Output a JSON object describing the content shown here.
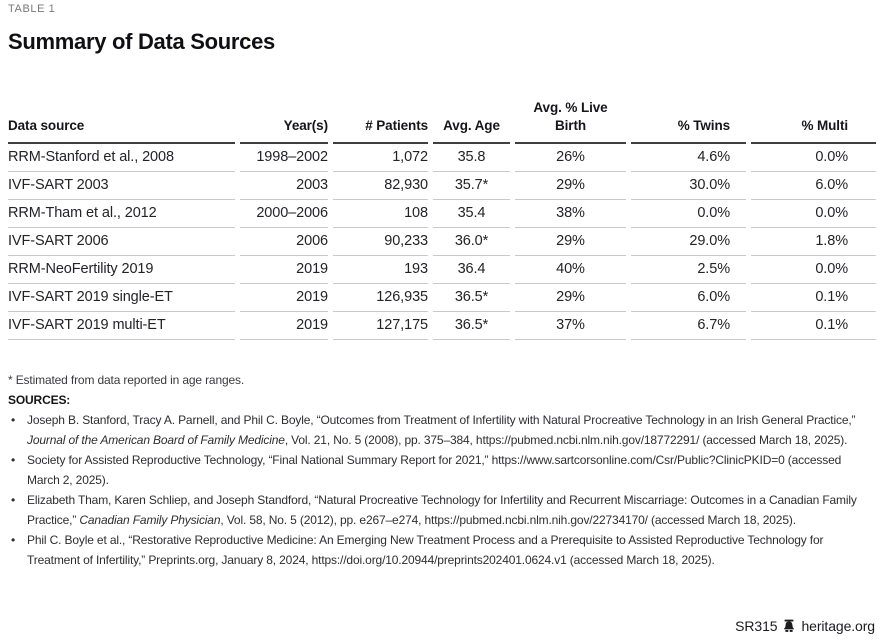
{
  "page": {
    "kicker": "TABLE 1",
    "title": "Summary of Data Sources"
  },
  "table": {
    "columns": [
      {
        "key": "data-source",
        "label": "Data source",
        "align": "left"
      },
      {
        "key": "years",
        "label": "Year(s)",
        "align": "right"
      },
      {
        "key": "patients",
        "label": "# Patients",
        "align": "right"
      },
      {
        "key": "avg-age",
        "label": "Avg. Age",
        "align": "center"
      },
      {
        "key": "avg-live-birth",
        "label": "Avg. % Live\nBirth",
        "align": "center"
      },
      {
        "key": "pct-twins",
        "label": "% Twins",
        "align": "right"
      },
      {
        "key": "pct-multi",
        "label": "% Multi",
        "align": "right"
      }
    ],
    "rows": [
      [
        "RRM-Stanford et al., 2008",
        "1998–2002",
        "1,072",
        "35.8",
        "26%",
        "4.6%",
        "0.0%"
      ],
      [
        "IVF-SART 2003",
        "2003",
        "82,930",
        "35.7*",
        "29%",
        "30.0%",
        "6.0%"
      ],
      [
        "RRM-Tham et al., 2012",
        "2000–2006",
        "108",
        "35.4",
        "38%",
        "0.0%",
        "0.0%"
      ],
      [
        "IVF-SART 2006",
        "2006",
        "90,233",
        "36.0*",
        "29%",
        "29.0%",
        "1.8%"
      ],
      [
        "RRM-NeoFertility 2019",
        "2019",
        "193",
        "36.4",
        "40%",
        "2.5%",
        "0.0%"
      ],
      [
        "IVF-SART 2019 single-ET",
        "2019",
        "126,935",
        "36.5*",
        "29%",
        "6.0%",
        "0.1%"
      ],
      [
        "IVF-SART 2019 multi-ET",
        "2019",
        "127,175",
        "36.5*",
        "37%",
        "6.7%",
        "0.1%"
      ]
    ]
  },
  "notes": {
    "footnote": "* Estimated from data reported in age ranges.",
    "sources_label": "SOURCES:",
    "bullet_char": "•",
    "sources": [
      [
        {
          "t": "Joseph B. Stanford, Tracy A. Parnell, and Phil C. Boyle, “Outcomes from Treatment of Infertility with Natural Procreative Technology in an Irish General Practice,” "
        },
        {
          "t": "Journal of the American Board of Family Medicine",
          "i": true
        },
        {
          "t": ", Vol. 21, No. 5 (2008), pp. 375–384, https://pubmed.ncbi.nlm.nih.gov/18772291/ (accessed March 18, 2025)."
        }
      ],
      [
        {
          "t": "Society for Assisted Reproductive Technology, “Final National Summary Report for 2021,” https://www.sartcorsonline.com/Csr/Public?ClinicPKID=0 (accessed March 2, 2025)."
        }
      ],
      [
        {
          "t": "Elizabeth Tham, Karen Schliep, and Joseph Standford, “Natural Procreative Technology for Infertility and Recurrent Miscarriage: Outcomes in a Canadian Family Practice,” "
        },
        {
          "t": "Canadian Family Physician",
          "i": true
        },
        {
          "t": ", Vol. 58, No. 5 (2012), pp. e267–e274, https://pubmed.ncbi.nlm.nih.gov/22734170/ (accessed March 18, 2025)."
        }
      ],
      [
        {
          "t": "Phil C. Boyle et al., “Restorative Reproductive Medicine: An Emerging New Treatment Process and a Prerequisite to Assisted Reproductive Technology for Treatment of Infertility,” Preprints.org, January 8, 2024, https://doi.org/10.20944/preprints202401.0624.v1 (accessed March 18, 2025)."
        }
      ]
    ]
  },
  "footer": {
    "report_id": "SR315",
    "site": "heritage.org"
  },
  "colors": {
    "header_rule": "#3f3f41",
    "row_rule": "#c9c9cb",
    "kicker_text": "#77797c",
    "body_text": "#26262a"
  }
}
